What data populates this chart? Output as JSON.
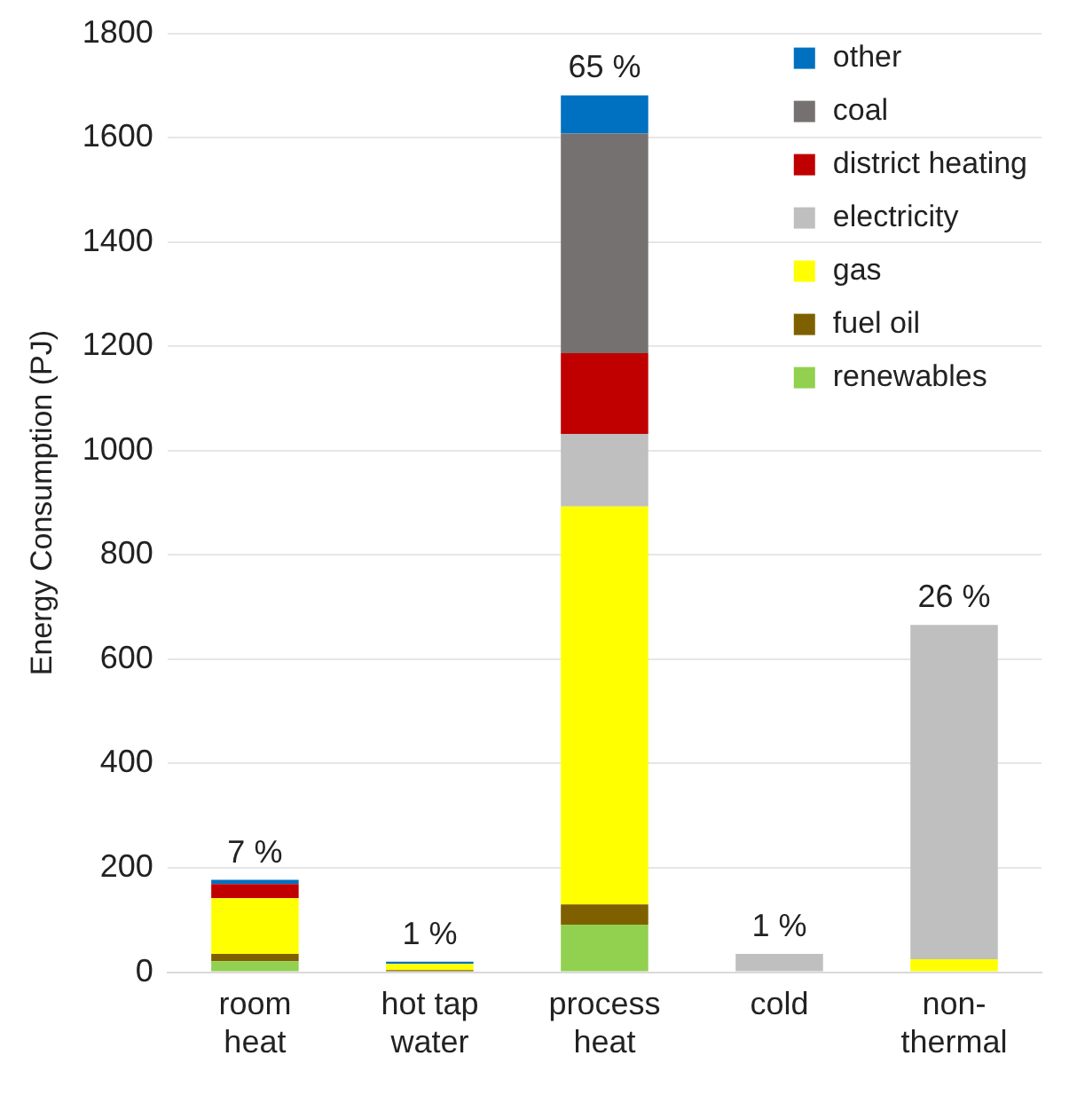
{
  "chart_data": {
    "type": "bar",
    "stacked": true,
    "ylabel": "Energy Consumption (PJ)",
    "categories": [
      "room heat",
      "hot tap water",
      "process heat",
      "cold",
      "non-thermal"
    ],
    "series": [
      {
        "name": "renewables",
        "color": "#92d050",
        "values": [
          21,
          0,
          91,
          0,
          0
        ]
      },
      {
        "name": "fuel oil",
        "color": "#7f6000",
        "values": [
          14,
          4,
          39,
          0,
          0
        ]
      },
      {
        "name": "gas",
        "color": "#ffff00",
        "values": [
          107,
          12,
          763,
          0,
          25
        ]
      },
      {
        "name": "electricity",
        "color": "#bfbfbf",
        "values": [
          0,
          null,
          139,
          35,
          641
        ]
      },
      {
        "name": "district heating",
        "color": "#c00000",
        "values": [
          27,
          0,
          155,
          0,
          0
        ]
      },
      {
        "name": "coal",
        "color": "#767171",
        "values": [
          0,
          0,
          421,
          0,
          0
        ]
      },
      {
        "name": "other",
        "color": "#0070c0",
        "values": [
          8,
          4,
          73,
          0,
          0
        ]
      }
    ],
    "annotations": [
      {
        "text": "7 %",
        "x": "room heat",
        "y": 177
      },
      {
        "text": "1 %",
        "x": "hot tap water",
        "y": 20
      },
      {
        "text": "65 %",
        "x": "process heat",
        "y": 1681
      },
      {
        "text": "1 %",
        "x": "cold",
        "y": 35
      },
      {
        "text": "26 %",
        "x": "non-thermal",
        "y": 666
      }
    ],
    "ylim": [
      0,
      1800
    ],
    "yticks": [
      0,
      200,
      400,
      600,
      800,
      1000,
      1200,
      1400,
      1600,
      1800
    ],
    "grid": "y",
    "legend": "top right"
  }
}
